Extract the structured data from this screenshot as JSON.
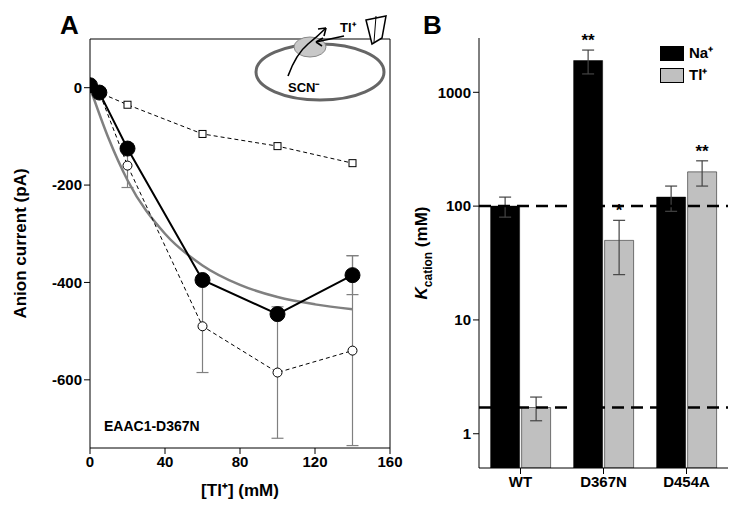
{
  "chart_data": [
    {
      "type": "line",
      "title": "A",
      "x_label": "[Tl⁺] (mM)",
      "y_label": "Anion current (pA)",
      "annotation": "EAAC1-D367N",
      "inset_labels": [
        "Tl⁺",
        "SCN⁻"
      ],
      "xlim": [
        0,
        160
      ],
      "xticks": [
        0,
        40,
        80,
        120,
        160
      ],
      "ylim": [
        -740,
        100
      ],
      "yticks": [
        -600,
        -400,
        -200,
        0
      ],
      "series": [
        {
          "color": "#808080",
          "marker": "none",
          "line_style": "solid",
          "x": [
            0,
            10,
            20,
            40,
            60,
            80,
            100,
            120,
            140
          ],
          "values": [
            0,
            -105,
            -190,
            -300,
            -365,
            -405,
            -430,
            -445,
            -455
          ]
        },
        {
          "color": "#000000",
          "marker": "square_open",
          "line_style": "dashed",
          "x": [
            0,
            5,
            20,
            60,
            100,
            140
          ],
          "values": [
            0,
            -10,
            -35,
            -95,
            -120,
            -155
          ]
        },
        {
          "color": "#000000",
          "marker": "circle_open",
          "line_style": "dashed",
          "x": [
            0,
            5,
            20,
            60,
            100,
            140
          ],
          "values": [
            5,
            -10,
            -160,
            -490,
            -585,
            -540
          ],
          "errors": [
            0,
            0,
            45,
            95,
            135,
            195
          ]
        },
        {
          "color": "#000000",
          "marker": "circle_filled",
          "line_style": "solid",
          "x": [
            0,
            5,
            20,
            60,
            100,
            140
          ],
          "values": [
            5,
            -10,
            -125,
            -395,
            -465,
            -385
          ],
          "errors": [
            0,
            0,
            0,
            0,
            0,
            40
          ]
        }
      ]
    },
    {
      "type": "bar",
      "title": "B",
      "categories": [
        "WT",
        "D367N",
        "D454A"
      ],
      "log": "y",
      "ylim": [
        0.5,
        3000
      ],
      "yticks": [
        1,
        10,
        100,
        1000
      ],
      "y_label": "K",
      "y_label_subscript": "cation",
      "y_label_unit": "(mM)",
      "legend": "upper right",
      "reference_lines": [
        100,
        1.7
      ],
      "series": [
        {
          "name": "Na⁺",
          "color": "#000000",
          "values": [
            100,
            1900,
            120
          ],
          "errors": [
            20,
            450,
            30
          ],
          "significance": [
            null,
            "**",
            null
          ]
        },
        {
          "name": "Tl⁺",
          "color": "#c0c0c0",
          "values": [
            1.7,
            50,
            200
          ],
          "errors": [
            0.4,
            25,
            50
          ],
          "significance": [
            null,
            "*",
            "**"
          ]
        }
      ]
    }
  ]
}
